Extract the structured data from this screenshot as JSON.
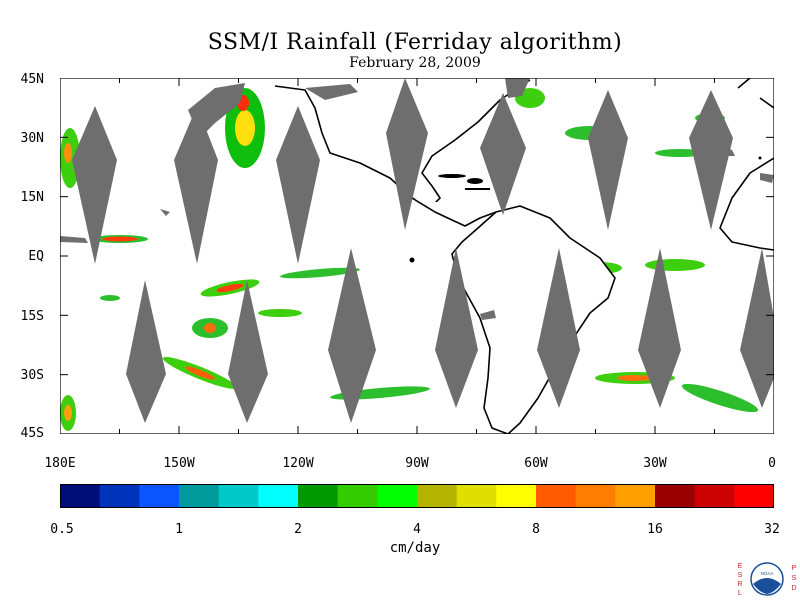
{
  "title": "SSM/I Rainfall (Ferriday algorithm)",
  "date": "February 28, 2009",
  "lat_labels": [
    "45N",
    "30N",
    "15N",
    "EQ",
    "15S",
    "30S",
    "45S"
  ],
  "lon_labels": [
    "180E",
    "150W",
    "120W",
    "90W",
    "60W",
    "30W",
    "0"
  ],
  "colorbar": {
    "unit_label": "cm/day",
    "tick_labels": [
      "0.5",
      "1",
      "2",
      "4",
      "8",
      "16",
      "32"
    ],
    "colors": [
      "#000e7a",
      "#0033bb",
      "#0a55ff",
      "#00999c",
      "#00c9c9",
      "#00ffff",
      "#009900",
      "#33cc00",
      "#00ff00",
      "#b3b300",
      "#dede00",
      "#ffff00",
      "#ff5a00",
      "#ff7d00",
      "#ff9f00",
      "#990000",
      "#cc0000",
      "#ff0000"
    ]
  },
  "map_colors": {
    "land": "#000000",
    "swath_gap": "#6e6e6e",
    "ocean": "#ffffff"
  },
  "logo_letters": {
    "left": [
      "E",
      "S",
      "R",
      "L"
    ],
    "right": [
      "P",
      "S",
      "D"
    ],
    "center": "NOAA"
  }
}
